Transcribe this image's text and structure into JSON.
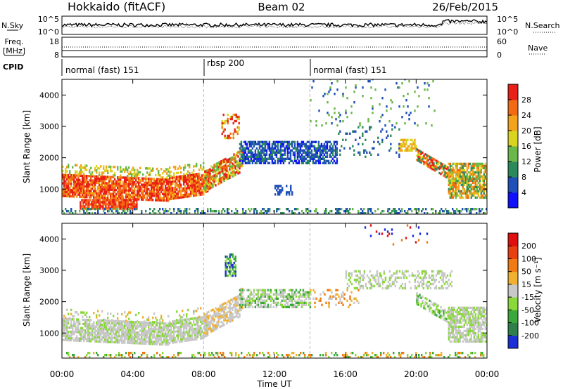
{
  "header": {
    "radar": "Hokkaido (fitACF)",
    "beam": "Beam 02",
    "date": "26/Feb/2015"
  },
  "top_panels": {
    "nsky_label": "N.Sky",
    "nsearch_label": "N.Search",
    "noise_ticks": [
      "10^5",
      "10^0"
    ],
    "freq_label": "Freq.",
    "freq_unit": "[MHz]",
    "freq_ticks": [
      "18",
      "8"
    ],
    "nave_label": "Nave",
    "nave_ticks": [
      "60",
      "0"
    ],
    "cpid_label": "CPID"
  },
  "cpid_segments": [
    {
      "label": "normal (fast) 151",
      "start_hour": 0
    },
    {
      "label": "rbsp 200",
      "start_hour": 8
    },
    {
      "label": "normal (fast) 151",
      "start_hour": 14
    }
  ],
  "chart_data": [
    {
      "type": "heatmap",
      "name": "power",
      "ylabel": "Slant Range [km]",
      "xlabel": "",
      "xlim": [
        0,
        24
      ],
      "ylim": [
        200,
        4500
      ],
      "yticks": [
        "1000",
        "2000",
        "3000",
        "4000"
      ],
      "colorbar_label": "Power [dB]",
      "colorbar_ticks": [
        "28",
        "24",
        "20",
        "16",
        "12",
        "8",
        "4"
      ],
      "colorbar_colors": [
        "#1010ff",
        "#204fb8",
        "#2c8a5a",
        "#6bb84a",
        "#d8d420",
        "#f3a21c",
        "#f36a14",
        "#e82018"
      ]
    },
    {
      "type": "heatmap",
      "name": "velocity",
      "ylabel": "Slant Range [km]",
      "xlabel": "Time UT",
      "xlim": [
        0,
        24
      ],
      "ylim": [
        200,
        4500
      ],
      "yticks": [
        "1000",
        "2000",
        "3000",
        "4000"
      ],
      "xticks": [
        "00:00",
        "04:00",
        "08:00",
        "12:00",
        "16:00",
        "20:00",
        "00:00"
      ],
      "colorbar_label": "Velocity [m s⁻¹]",
      "colorbar_ticks": [
        "200",
        "100",
        "50",
        "15",
        "-15",
        "-50",
        "-100",
        "-200"
      ],
      "colorbar_colors": [
        "#1b2fd6",
        "#2e7f4a",
        "#3aa83a",
        "#8ad83a",
        "#c8c8c8",
        "#f0b030",
        "#f07a14",
        "#e84010",
        "#e01010"
      ]
    }
  ]
}
